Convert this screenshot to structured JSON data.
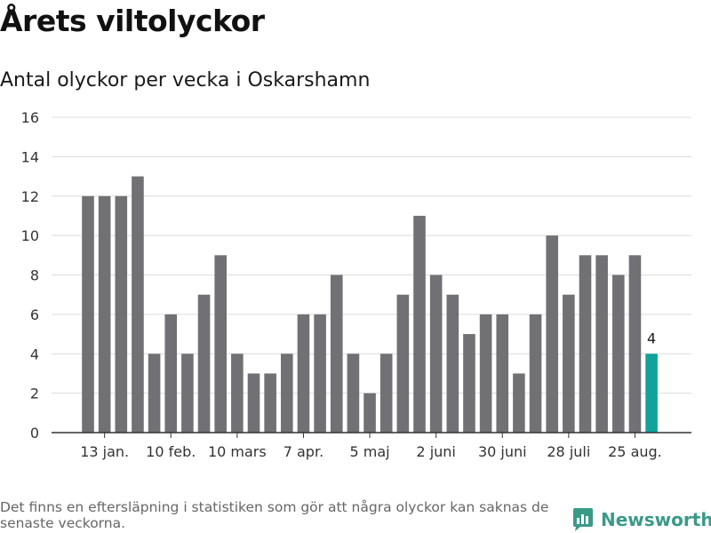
{
  "title": "Årets viltolyckor",
  "subtitle": "Antal olyckor per vecka i Oskarshamn",
  "footnote": "Det finns en eftersläpning i statistiken som gör att några olyckor kan saknas de senaste veckorna.",
  "brand": {
    "name": "Newsworthy",
    "icon": "newsworthy-chart-icon"
  },
  "colors": {
    "bar": "#717074",
    "highlight": "#11a39a",
    "grid": "#dcdcdc",
    "axis": "#333333"
  },
  "chart_data": {
    "type": "bar",
    "title": "Antal olyckor per vecka i Oskarshamn",
    "xlabel": "",
    "ylabel": "",
    "ylim": [
      0,
      16
    ],
    "yticks": [
      0,
      2,
      4,
      6,
      8,
      10,
      12,
      14,
      16
    ],
    "grid": true,
    "x_tick_labels": [
      {
        "index": 1,
        "label": "13 jan."
      },
      {
        "index": 5,
        "label": "10 feb."
      },
      {
        "index": 9,
        "label": "10 mars"
      },
      {
        "index": 13,
        "label": "7 apr."
      },
      {
        "index": 17,
        "label": "5 maj"
      },
      {
        "index": 21,
        "label": "2 juni"
      },
      {
        "index": 25,
        "label": "30 juni"
      },
      {
        "index": 29,
        "label": "28 juli"
      },
      {
        "index": 33,
        "label": "25 aug."
      }
    ],
    "values": [
      12,
      12,
      12,
      13,
      4,
      6,
      4,
      7,
      9,
      4,
      3,
      3,
      4,
      6,
      6,
      8,
      4,
      2,
      4,
      7,
      11,
      8,
      7,
      5,
      6,
      6,
      3,
      6,
      10,
      7,
      9,
      9,
      8,
      9,
      4
    ],
    "highlight_index": 34,
    "data_labels": [
      {
        "index": 34,
        "label": "4"
      }
    ]
  }
}
